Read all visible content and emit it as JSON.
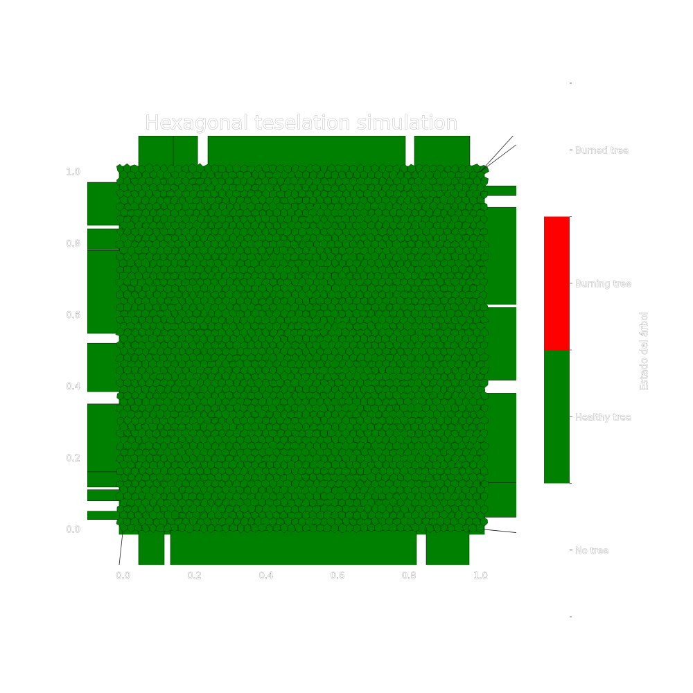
{
  "chart_data": {
    "type": "heatmap",
    "title": "Hexagonal teselation simulation",
    "xlabel": "",
    "ylabel": "",
    "xlim": [
      -0.1,
      1.1
    ],
    "ylim": [
      -0.1,
      1.1
    ],
    "x_ticks": [
      "0.0",
      "0.2",
      "0.4",
      "0.6",
      "0.8",
      "1.0"
    ],
    "y_ticks": [
      "0.0",
      "0.2",
      "0.4",
      "0.6",
      "0.8",
      "1.0"
    ],
    "x_tick_values": [
      0.0,
      0.2,
      0.4,
      0.6,
      0.8,
      1.0
    ],
    "y_tick_values": [
      0.0,
      0.2,
      0.4,
      0.6,
      0.8,
      1.0
    ],
    "cell_states": {
      "Healthy tree": 1.0,
      "Burning tree": 0.0,
      "Burned tree": 0.0,
      "No tree": 0.0
    },
    "grid": false,
    "colorbar": {
      "label": "Estado del árbol",
      "categories": [
        "No tree",
        "Healthy tree",
        "Burning tree",
        "Burned tree"
      ],
      "colors": [
        "#ffffff",
        "#008000",
        "#ff0000",
        "#ffffff"
      ]
    }
  }
}
